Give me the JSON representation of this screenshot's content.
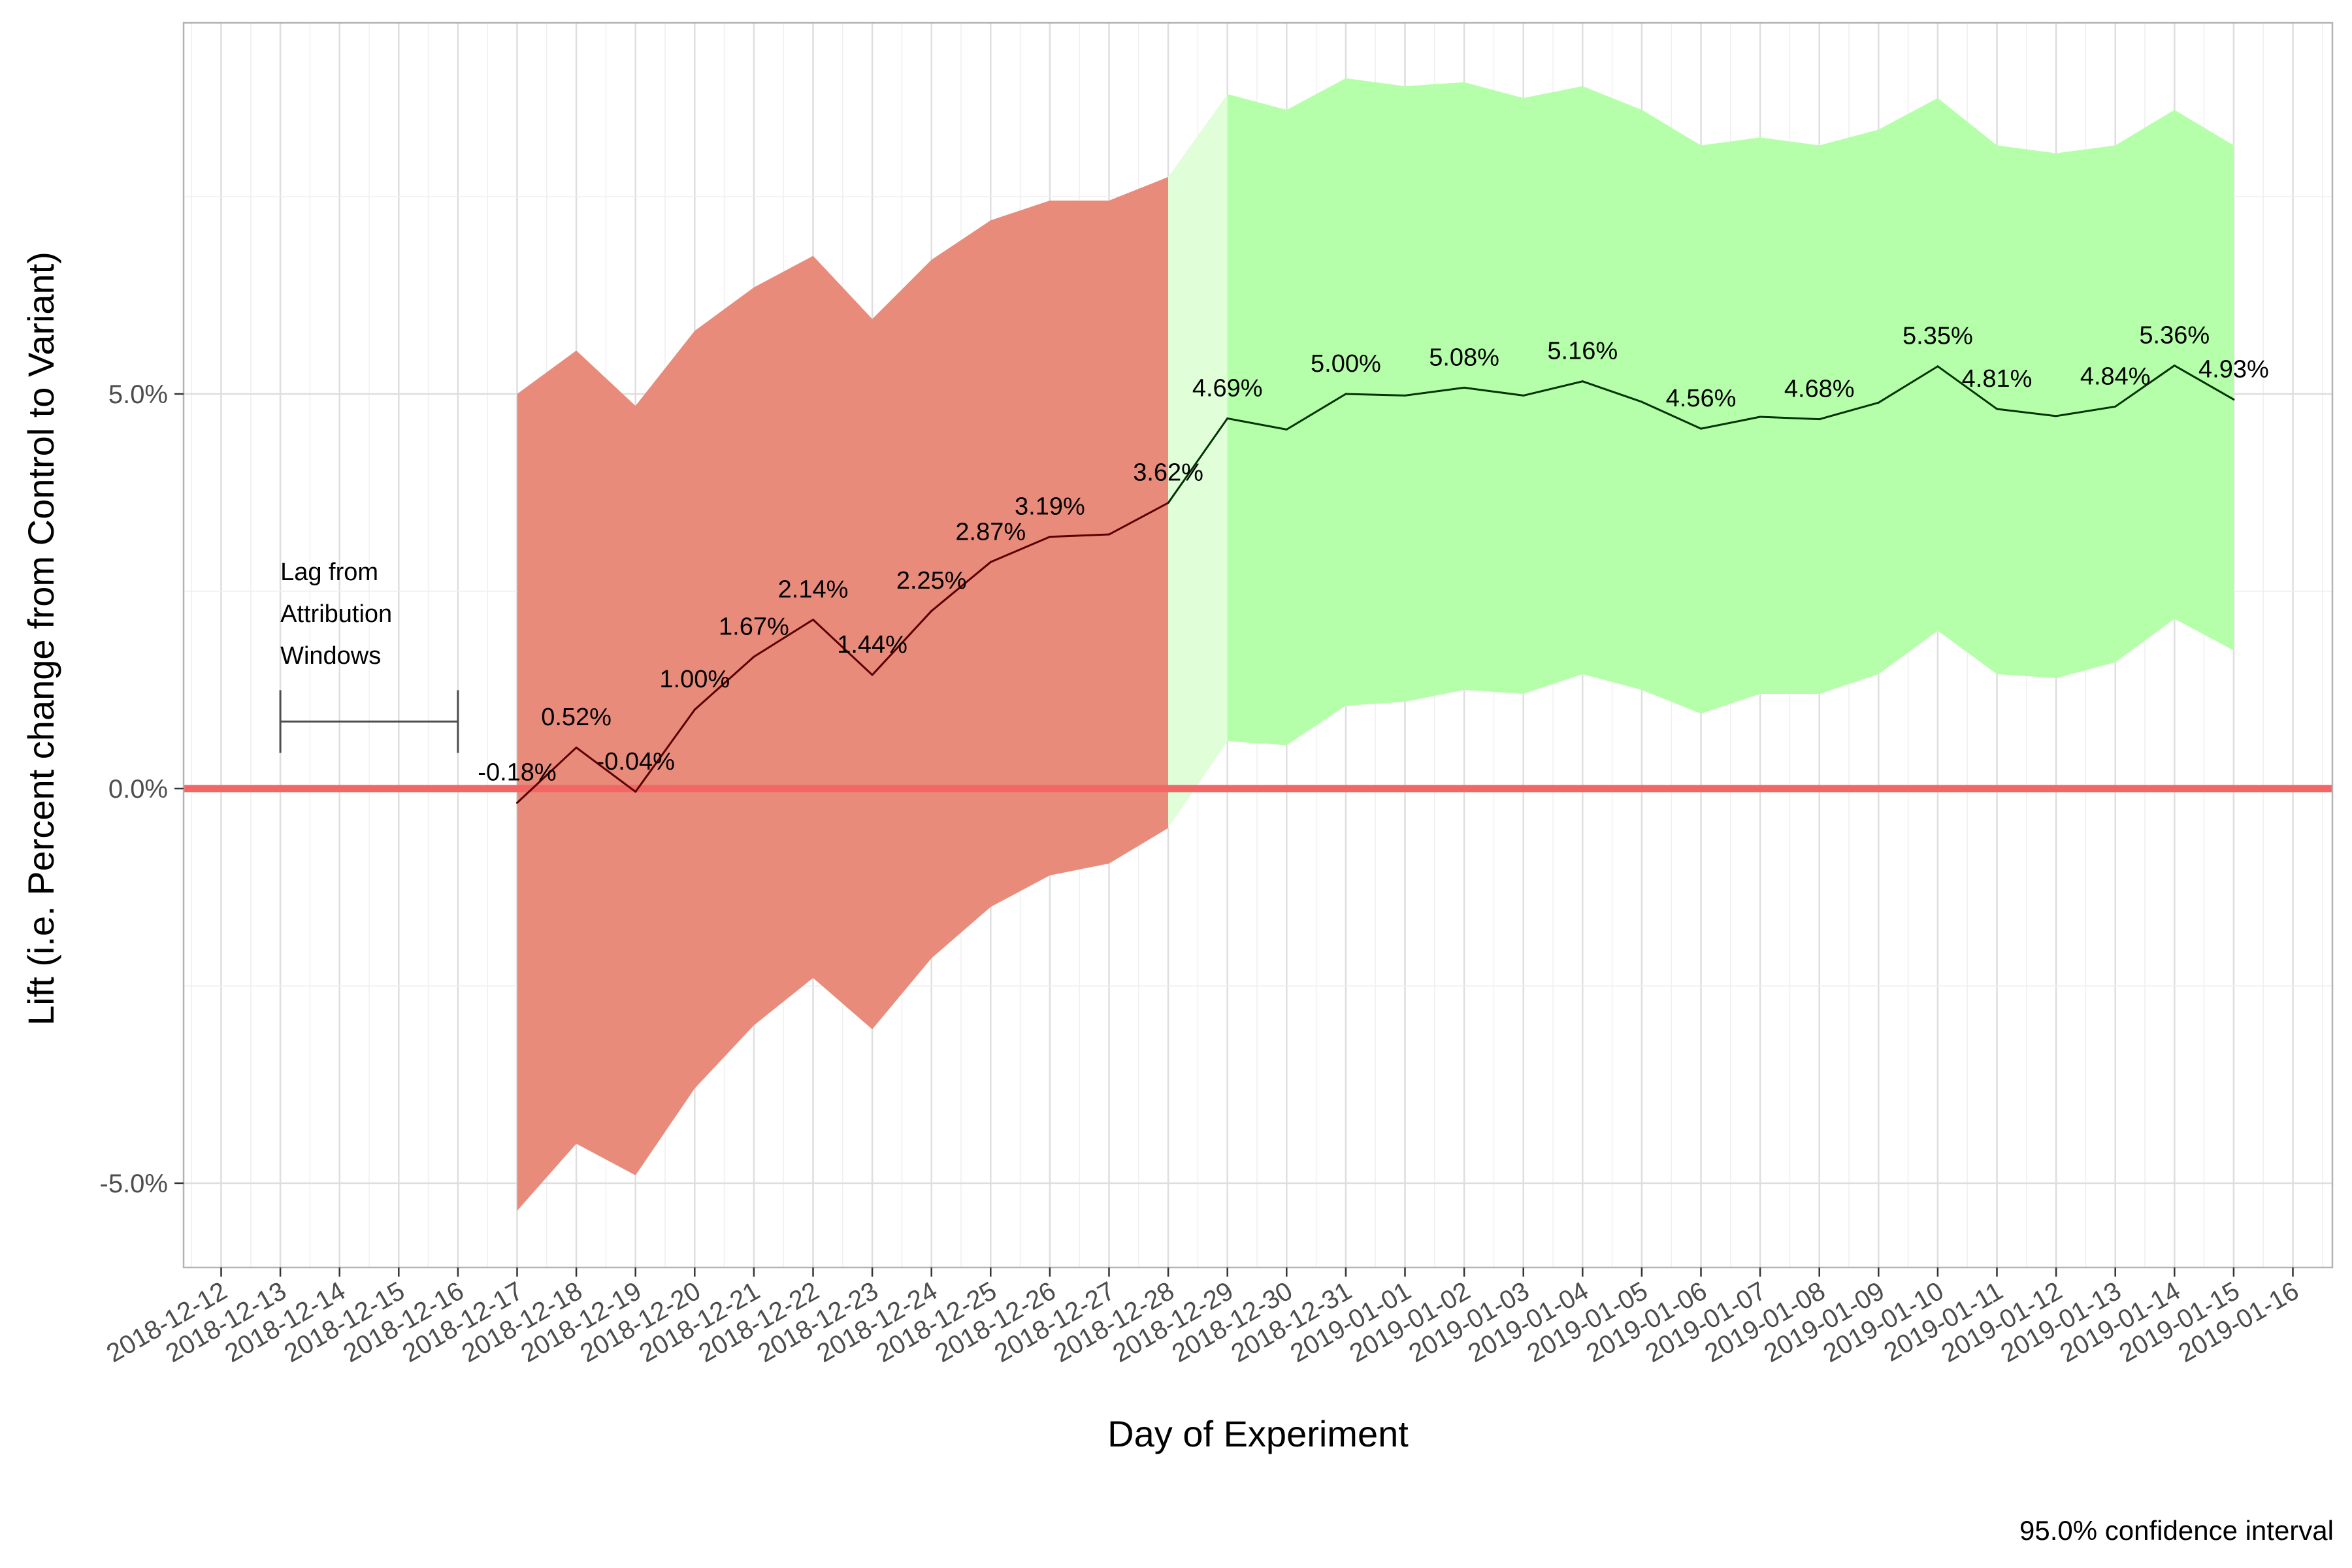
{
  "chart_data": {
    "type": "line",
    "xlabel": "Day of Experiment",
    "ylabel": "Lift (i.e. Percent change from Control to Variant)",
    "caption": "95.0% confidence interval",
    "x_ticks": [
      "2018-12-12",
      "2018-12-13",
      "2018-12-14",
      "2018-12-15",
      "2018-12-16",
      "2018-12-17",
      "2018-12-18",
      "2018-12-19",
      "2018-12-20",
      "2018-12-21",
      "2018-12-22",
      "2018-12-23",
      "2018-12-24",
      "2018-12-25",
      "2018-12-26",
      "2018-12-27",
      "2018-12-28",
      "2018-12-29",
      "2018-12-30",
      "2018-12-31",
      "2019-01-01",
      "2019-01-02",
      "2019-01-03",
      "2019-01-04",
      "2019-01-05",
      "2019-01-06",
      "2019-01-07",
      "2019-01-08",
      "2019-01-09",
      "2019-01-10",
      "2019-01-11",
      "2019-01-12",
      "2019-01-13",
      "2019-01-14",
      "2019-01-15",
      "2019-01-16"
    ],
    "y_ticks": [
      {
        "value": -5,
        "label": "-5.0%"
      },
      {
        "value": 0,
        "label": "0.0%"
      },
      {
        "value": 5,
        "label": "5.0%"
      }
    ],
    "xlim": [
      "2018-12-11.4",
      "2019-01-16.6"
    ],
    "ylim": [
      -6.05,
      9.7
    ],
    "grid": true,
    "reference_line": {
      "y": 0,
      "color": "#f26666"
    },
    "colors": {
      "not_significant_band": "#e98b7a",
      "significant_band": "#b6ffaa",
      "transition_band": "#e0ffd9",
      "line_not_significant": "#5a0000",
      "line_significant": "#003300"
    },
    "lag_annotation": {
      "lines": [
        "Lag from",
        "Attribution",
        "Windows"
      ],
      "start": "2018-12-13",
      "end": "2018-12-16",
      "y": 0.85
    },
    "series": [
      {
        "x": [
          "2018-12-17",
          "2018-12-18",
          "2018-12-19",
          "2018-12-20",
          "2018-12-21",
          "2018-12-22",
          "2018-12-23",
          "2018-12-24",
          "2018-12-25",
          "2018-12-26",
          "2018-12-27",
          "2018-12-28",
          "2018-12-29",
          "2018-12-30",
          "2018-12-31",
          "2019-01-01",
          "2019-01-02",
          "2019-01-03",
          "2019-01-04",
          "2019-01-05",
          "2019-01-06",
          "2019-01-07",
          "2019-01-08",
          "2019-01-09",
          "2019-01-10",
          "2019-01-11",
          "2019-01-12",
          "2019-01-13",
          "2019-01-14",
          "2019-01-15"
        ],
        "values": [
          -0.18,
          0.52,
          -0.04,
          1.0,
          1.67,
          2.14,
          1.44,
          2.25,
          2.87,
          3.19,
          3.22,
          3.62,
          4.69,
          4.55,
          5.0,
          4.98,
          5.08,
          4.98,
          5.16,
          4.9,
          4.56,
          4.71,
          4.68,
          4.89,
          5.35,
          4.81,
          4.72,
          4.84,
          5.36,
          4.93
        ],
        "lower": [
          -5.35,
          -4.5,
          -4.9,
          -3.8,
          -3.0,
          -2.4,
          -3.05,
          -2.15,
          -1.5,
          -1.1,
          -0.95,
          -0.5,
          0.6,
          0.55,
          1.05,
          1.1,
          1.25,
          1.2,
          1.45,
          1.25,
          0.95,
          1.2,
          1.2,
          1.45,
          2.0,
          1.45,
          1.4,
          1.6,
          2.15,
          1.75
        ],
        "upper": [
          5.0,
          5.55,
          4.85,
          5.8,
          6.35,
          6.75,
          5.95,
          6.7,
          7.2,
          7.45,
          7.45,
          7.75,
          8.8,
          8.6,
          9.0,
          8.9,
          8.95,
          8.75,
          8.9,
          8.6,
          8.15,
          8.25,
          8.15,
          8.35,
          8.75,
          8.15,
          8.05,
          8.15,
          8.6,
          8.15
        ],
        "significant": [
          false,
          false,
          false,
          false,
          false,
          false,
          false,
          false,
          false,
          false,
          false,
          false,
          true,
          true,
          true,
          true,
          true,
          true,
          true,
          true,
          true,
          true,
          true,
          true,
          true,
          true,
          true,
          true,
          true,
          true
        ]
      }
    ],
    "data_labels": [
      {
        "x": "2018-12-17",
        "y": -0.18,
        "label": "-0.18%"
      },
      {
        "x": "2018-12-18",
        "y": 0.52,
        "label": "0.52%"
      },
      {
        "x": "2018-12-19",
        "y": -0.04,
        "label": "-0.04%"
      },
      {
        "x": "2018-12-20",
        "y": 1.0,
        "label": "1.00%"
      },
      {
        "x": "2018-12-21",
        "y": 1.67,
        "label": "1.67%"
      },
      {
        "x": "2018-12-22",
        "y": 2.14,
        "label": "2.14%"
      },
      {
        "x": "2018-12-23",
        "y": 1.44,
        "label": "1.44%"
      },
      {
        "x": "2018-12-24",
        "y": 2.25,
        "label": "2.25%"
      },
      {
        "x": "2018-12-25",
        "y": 2.87,
        "label": "2.87%"
      },
      {
        "x": "2018-12-26",
        "y": 3.19,
        "label": "3.19%"
      },
      {
        "x": "2018-12-28",
        "y": 3.62,
        "label": "3.62%"
      },
      {
        "x": "2018-12-29",
        "y": 4.69,
        "label": "4.69%"
      },
      {
        "x": "2018-12-31",
        "y": 5.0,
        "label": "5.00%"
      },
      {
        "x": "2019-01-02",
        "y": 5.08,
        "label": "5.08%"
      },
      {
        "x": "2019-01-04",
        "y": 5.16,
        "label": "5.16%"
      },
      {
        "x": "2019-01-06",
        "y": 4.56,
        "label": "4.56%"
      },
      {
        "x": "2019-01-08",
        "y": 4.68,
        "label": "4.68%"
      },
      {
        "x": "2019-01-10",
        "y": 5.35,
        "label": "5.35%"
      },
      {
        "x": "2019-01-11",
        "y": 4.81,
        "label": "4.81%"
      },
      {
        "x": "2019-01-13",
        "y": 4.84,
        "label": "4.84%"
      },
      {
        "x": "2019-01-14",
        "y": 5.36,
        "label": "5.36%"
      },
      {
        "x": "2019-01-15",
        "y": 4.93,
        "label": "4.93%"
      }
    ]
  }
}
